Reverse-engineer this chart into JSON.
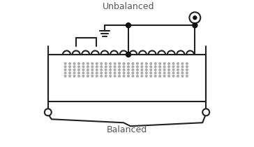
{
  "title_unbalanced": "Unbalanced",
  "title_balanced": "Balanced",
  "bg_color": "#ffffff",
  "line_color": "#222222",
  "dot_color": "#111111",
  "text_color": "#555555",
  "figsize": [
    3.64,
    2.1
  ],
  "dpi": 100
}
